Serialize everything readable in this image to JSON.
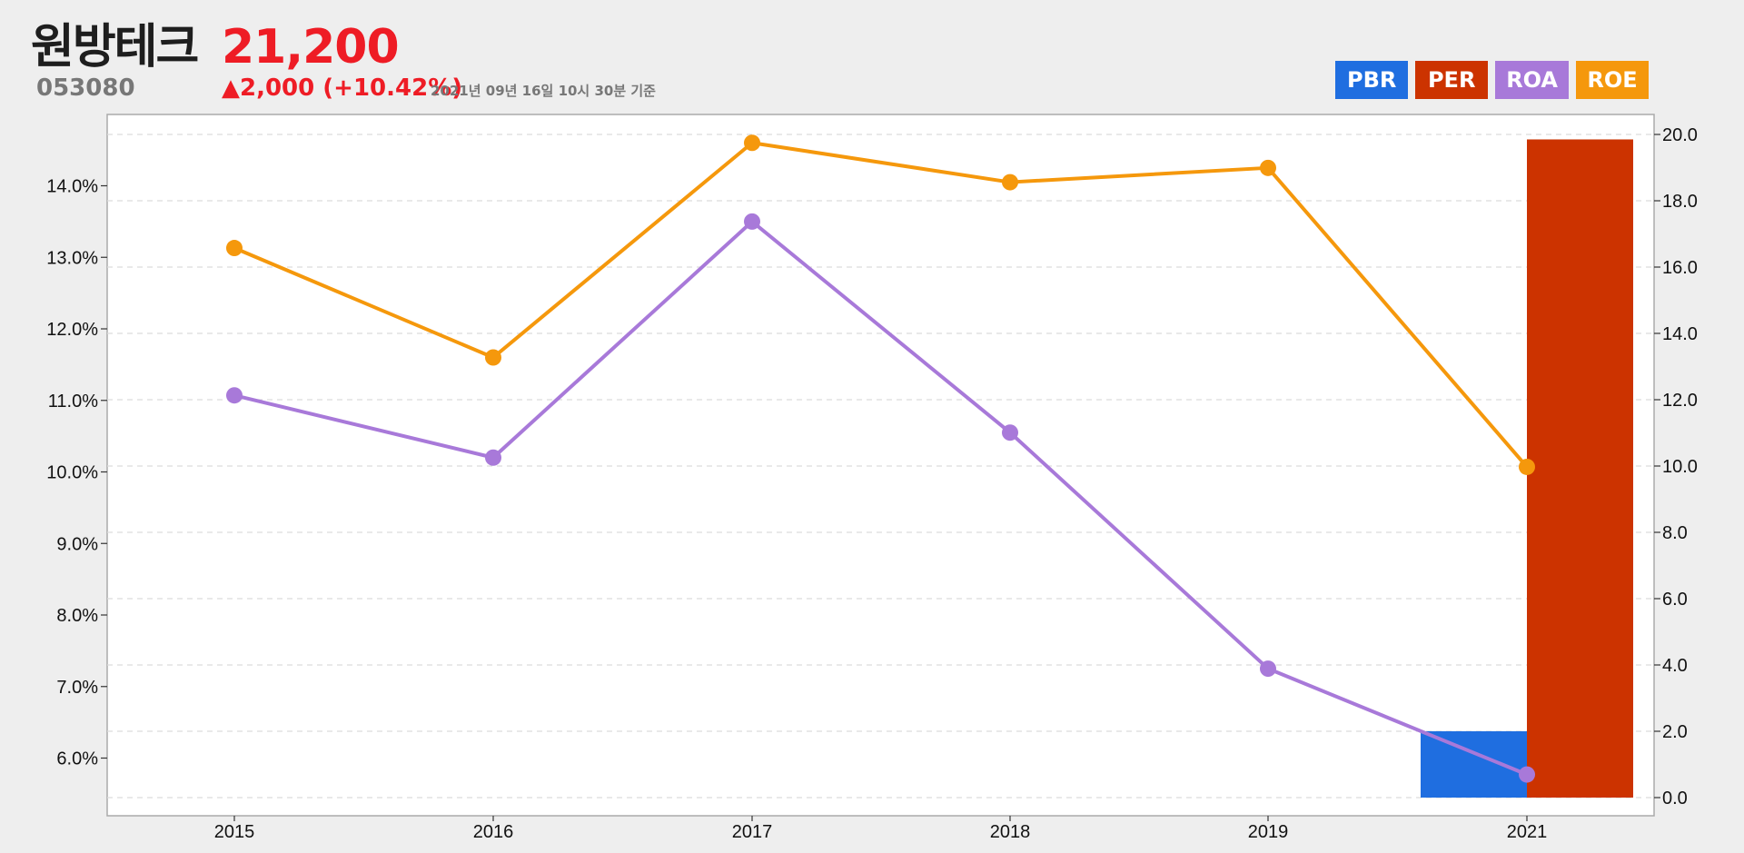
{
  "header": {
    "name": "원방테크",
    "code": "053080",
    "price": "21,200",
    "change": "▲2,000 (+10.42%)",
    "date": "2021년 09년 16일 10시 30분 기준"
  },
  "legend": [
    {
      "label": "PBR",
      "color": "#1f6ee0"
    },
    {
      "label": "PER",
      "color": "#cc3300"
    },
    {
      "label": "ROA",
      "color": "#a879d9"
    },
    {
      "label": "ROE",
      "color": "#f5980c"
    }
  ],
  "chart_data": {
    "type": "line",
    "categories": [
      "2015",
      "2016",
      "2017",
      "2018",
      "2019",
      "2021"
    ],
    "left_axis": {
      "ticks": [
        "6.0%",
        "7.0%",
        "8.0%",
        "9.0%",
        "10.0%",
        "11.0%",
        "12.0%",
        "13.0%",
        "14.0%"
      ],
      "range": [
        5.5,
        14.7
      ]
    },
    "right_axis": {
      "ticks": [
        "0.0",
        "2.0",
        "4.0",
        "6.0",
        "8.0",
        "10.0",
        "12.0",
        "14.0",
        "16.0",
        "18.0",
        "20.0"
      ],
      "range": [
        0,
        20.5
      ]
    },
    "grid": true,
    "series": [
      {
        "name": "ROE",
        "axis": "left",
        "type": "line",
        "color": "#f5980c",
        "values": [
          13.13,
          11.6,
          14.6,
          14.05,
          14.25,
          10.07
        ]
      },
      {
        "name": "ROA",
        "axis": "left",
        "type": "line",
        "color": "#a879d9",
        "values": [
          11.07,
          10.2,
          13.5,
          10.55,
          7.25,
          5.77
        ]
      },
      {
        "name": "PBR",
        "axis": "right",
        "type": "bar",
        "color": "#1f6ee0",
        "values": [
          null,
          null,
          null,
          null,
          null,
          2.0
        ]
      },
      {
        "name": "PER",
        "axis": "right",
        "type": "bar",
        "color": "#cc3300",
        "values": [
          null,
          null,
          null,
          null,
          null,
          19.85
        ]
      }
    ]
  }
}
